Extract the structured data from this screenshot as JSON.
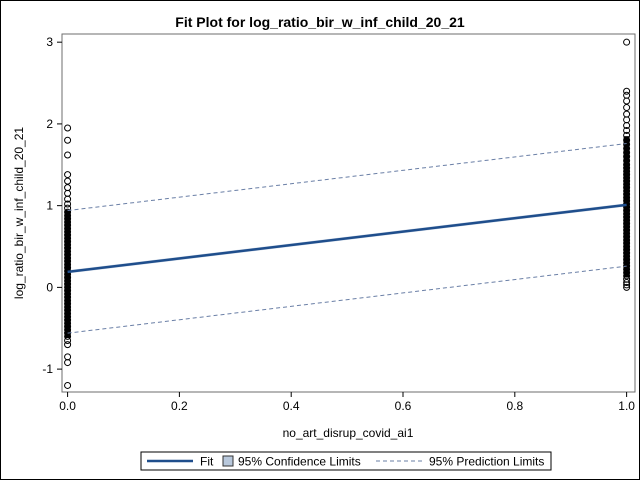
{
  "chart_data": {
    "type": "scatter",
    "title": "Fit Plot for log_ratio_bir_w_inf_child_20_21",
    "xlabel": "no_art_disrup_covid_ai1",
    "ylabel": "log_ratio_bir_w_inf_child_20_21",
    "xlim": [
      -0.01,
      1.015
    ],
    "ylim": [
      -1.28,
      3.1
    ],
    "xticks": [
      0.0,
      0.2,
      0.4,
      0.6,
      0.8,
      1.0
    ],
    "xtick_labels": [
      "0.0",
      "0.2",
      "0.4",
      "0.6",
      "0.8",
      "1.0"
    ],
    "yticks": [
      -1,
      0,
      1,
      2,
      3
    ],
    "ytick_labels": [
      "-1",
      "0",
      "1",
      "2",
      "3"
    ],
    "grid": false,
    "legend_position": "bottom",
    "colors": {
      "fit": "#1f4e8c",
      "confidence": "#b8c8dc",
      "prediction": "#6a7fa6",
      "points": "#000000"
    },
    "legend": [
      {
        "key": "fit",
        "label": "Fit"
      },
      {
        "key": "confidence",
        "label": "95% Confidence Limits"
      },
      {
        "key": "prediction",
        "label": "95% Prediction Limits"
      }
    ],
    "fit_line": {
      "x": [
        0,
        1
      ],
      "y": [
        0.19,
        1.01
      ]
    },
    "confidence_limits": {
      "x": [
        0,
        1
      ],
      "lower": [
        0.17,
        0.99
      ],
      "upper": [
        0.21,
        1.03
      ]
    },
    "prediction_limits": {
      "x": [
        0,
        1
      ],
      "lower": [
        -0.56,
        0.26
      ],
      "upper": [
        0.94,
        1.76
      ]
    },
    "points": {
      "x0": [
        1.95,
        1.8,
        1.62,
        1.38,
        1.3,
        1.22,
        1.15,
        1.08,
        1.02,
        0.97,
        0.92,
        0.88,
        0.84,
        0.8,
        0.76,
        0.72,
        0.68,
        0.64,
        0.6,
        0.56,
        0.52,
        0.48,
        0.44,
        0.4,
        0.36,
        0.32,
        0.28,
        0.24,
        0.2,
        0.16,
        0.12,
        0.08,
        0.04,
        0.0,
        -0.04,
        -0.08,
        -0.12,
        -0.16,
        -0.2,
        -0.24,
        -0.28,
        -0.32,
        -0.36,
        -0.4,
        -0.44,
        -0.48,
        -0.52,
        -0.56,
        -0.6,
        -0.65,
        -0.7,
        -0.85,
        -0.92,
        -1.2
      ],
      "x1": [
        3.0,
        2.4,
        2.35,
        2.28,
        2.2,
        2.12,
        2.05,
        1.98,
        1.92,
        1.86,
        1.8,
        1.75,
        1.7,
        1.65,
        1.6,
        1.55,
        1.5,
        1.46,
        1.42,
        1.38,
        1.34,
        1.3,
        1.26,
        1.22,
        1.18,
        1.14,
        1.1,
        1.06,
        1.02,
        0.98,
        0.94,
        0.9,
        0.86,
        0.82,
        0.78,
        0.74,
        0.7,
        0.66,
        0.62,
        0.58,
        0.54,
        0.5,
        0.46,
        0.42,
        0.38,
        0.34,
        0.3,
        0.26,
        0.22,
        0.18,
        0.14,
        0.1,
        0.06,
        0.03,
        0.0
      ]
    }
  }
}
